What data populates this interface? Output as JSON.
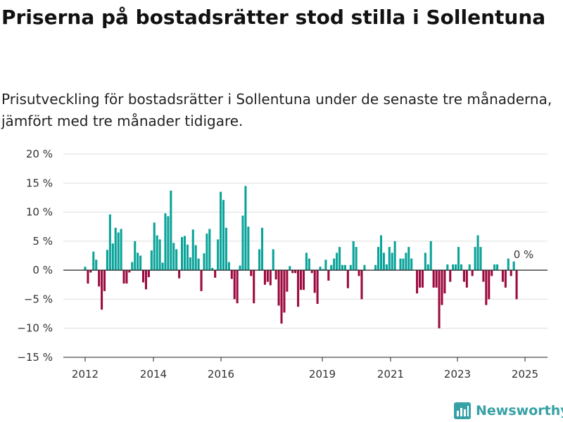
{
  "header": {
    "title": "Priserna på bostadsrätter stod stilla i Sollentuna",
    "subtitle": "Prisutveckling för bostadsrätter i Sollentuna under de senaste tre månaderna, jämfört med tre månader tidigare."
  },
  "brand": {
    "name": "Newsworthy",
    "icon": "newsworthy-logo-icon"
  },
  "colors": {
    "positive": "#0aa39a",
    "negative": "#9c0a3f",
    "grid": "#dddddd",
    "axis": "#222222",
    "brand": "#37a1a5"
  },
  "chart_data": {
    "type": "bar",
    "title": "",
    "xlabel": "",
    "ylabel": "",
    "ylim": [
      -15,
      20
    ],
    "y_ticks": [
      {
        "value": 20,
        "label": "20 %"
      },
      {
        "value": 15,
        "label": "15 %"
      },
      {
        "value": 10,
        "label": "10 %"
      },
      {
        "value": 5,
        "label": "5 %"
      },
      {
        "value": 0,
        "label": "0 %"
      },
      {
        "value": -5,
        "label": "−5 %"
      },
      {
        "value": -10,
        "label": "−10 %"
      },
      {
        "value": -15,
        "label": "−15 %"
      }
    ],
    "x_ticks": [
      "2012",
      "2014",
      "2016",
      "2019",
      "2021",
      "2023",
      "2025"
    ],
    "grid": true,
    "annotation": {
      "label": "0 %",
      "value": 0
    },
    "series": [
      {
        "values": [
          0.6,
          -2.3,
          -0.4,
          3.2,
          1.8,
          -2.8,
          -6.8,
          -3.6,
          3.5,
          9.6,
          4.6,
          7.3,
          6.5,
          7.1,
          -2.3,
          -2.3,
          -0.4,
          1.4,
          5.0,
          3.0,
          2.5,
          -2.1,
          -3.3,
          -1.2,
          3.4,
          8.2,
          6.0,
          5.3,
          1.3,
          9.8,
          9.3,
          13.7,
          4.7,
          3.6,
          -1.4,
          5.7,
          5.9,
          4.4,
          2.2,
          7.0,
          4.3,
          2.0,
          -3.6,
          2.9,
          6.3,
          7.1,
          0.4,
          -1.3,
          5.3,
          13.5,
          12.1,
          7.3,
          1.4,
          -1.5,
          -5.0,
          -5.7,
          0.8,
          9.4,
          14.5,
          7.5,
          -1.0,
          -5.7,
          0.0,
          3.6,
          7.3,
          -2.5,
          -2.0,
          -2.6,
          3.6,
          -1.6,
          -6.1,
          -9.2,
          -7.3,
          -3.7,
          0.7,
          -0.5,
          -0.5,
          -6.3,
          -3.4,
          -3.4,
          3.0,
          2.0,
          -0.5,
          -3.9,
          -5.8,
          0.6,
          0.2,
          1.8,
          -1.8,
          0.9,
          2.0,
          3.0,
          4.0,
          0.9,
          0.9,
          -3.1,
          0.9,
          5.0,
          4.0,
          -1.0,
          -5.0,
          0.9,
          0.0,
          0.0,
          0.0,
          0.9,
          4.0,
          6.0,
          3.0,
          1.0,
          4.0,
          3.0,
          5.0,
          0.0,
          2.0,
          2.0,
          3.0,
          4.0,
          2.0,
          0.0,
          -4.0,
          -3.0,
          -3.0,
          3.0,
          1.0,
          5.0,
          -3.0,
          -3.0,
          -10.0,
          -6.0,
          -4.0,
          1.0,
          -2.0,
          1.0,
          1.0,
          4.0,
          1.0,
          -2.0,
          -3.0,
          1.0,
          -1.0,
          4.0,
          6.0,
          4.0,
          -2.0,
          -6.0,
          -5.0,
          -1.0,
          1.0,
          1.0,
          0.0,
          -2.0,
          -3.0,
          2.0,
          -1.0,
          1.5,
          -5.0,
          0.0
        ]
      }
    ]
  }
}
